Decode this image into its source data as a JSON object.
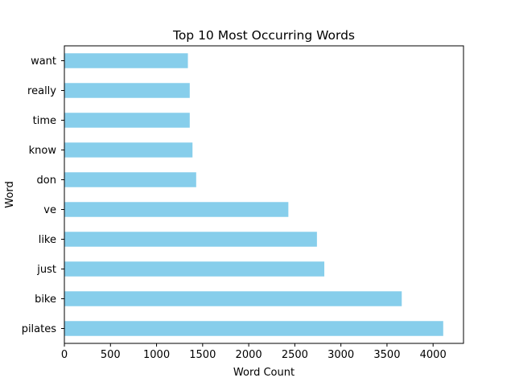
{
  "chart_data": {
    "type": "bar",
    "orientation": "horizontal",
    "title": "Top 10 Most Occurring Words",
    "xlabel": "Word Count",
    "ylabel": "Word",
    "categories": [
      "pilates",
      "bike",
      "just",
      "like",
      "ve",
      "don",
      "know",
      "time",
      "really",
      "want"
    ],
    "values": [
      4110,
      3660,
      2820,
      2740,
      2430,
      1430,
      1390,
      1360,
      1360,
      1340
    ],
    "xlim": [
      0,
      4330
    ],
    "xticks": [
      0,
      500,
      1000,
      1500,
      2000,
      2500,
      3000,
      3500,
      4000
    ],
    "bar_color": "#87ceeb",
    "grid": false,
    "legend": "none"
  }
}
